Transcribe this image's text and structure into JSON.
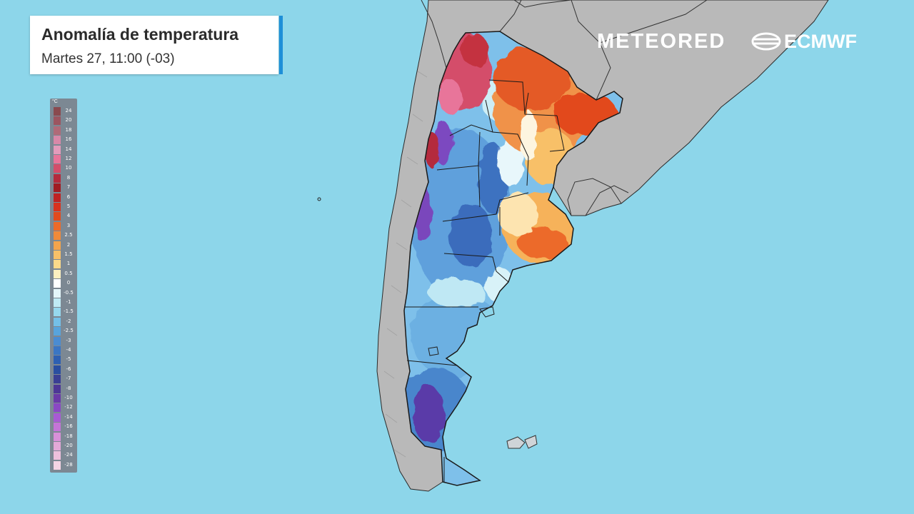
{
  "title": "Anomalía de temperatura",
  "subtitle": "Martes 27, 11:00 (-03)",
  "brand_meteored": "METEORED",
  "brand_ecmwf": "ECMWF",
  "legend": {
    "unit": "°C",
    "entries": [
      {
        "label": "24",
        "color": "#8a4a4f"
      },
      {
        "label": "20",
        "color": "#9c5560"
      },
      {
        "label": "18",
        "color": "#b06a78"
      },
      {
        "label": "16",
        "color": "#d888a8"
      },
      {
        "label": "14",
        "color": "#e39bbb"
      },
      {
        "label": "12",
        "color": "#e8749a"
      },
      {
        "label": "10",
        "color": "#d44d6a"
      },
      {
        "label": "8",
        "color": "#b42a3c"
      },
      {
        "label": "7",
        "color": "#a01c22"
      },
      {
        "label": "6",
        "color": "#bf2222"
      },
      {
        "label": "5",
        "color": "#d8321e"
      },
      {
        "label": "4",
        "color": "#e24a1e"
      },
      {
        "label": "3",
        "color": "#ec6a2a"
      },
      {
        "label": "2.5",
        "color": "#f08a3a"
      },
      {
        "label": "2",
        "color": "#f4a44c"
      },
      {
        "label": "1.5",
        "color": "#f8c068"
      },
      {
        "label": "1",
        "color": "#fbd98a"
      },
      {
        "label": "0.5",
        "color": "#fdf0c0"
      },
      {
        "label": "0",
        "color": "#ffffff"
      },
      {
        "label": "-0.5",
        "color": "#e4f6fa"
      },
      {
        "label": "-1",
        "color": "#bfeaf4"
      },
      {
        "label": "-1.5",
        "color": "#96d8ee"
      },
      {
        "label": "-2",
        "color": "#74c0e8"
      },
      {
        "label": "-2.5",
        "color": "#58a4dc"
      },
      {
        "label": "-3",
        "color": "#4a8cd2"
      },
      {
        "label": "-4",
        "color": "#3a76c4"
      },
      {
        "label": "-5",
        "color": "#2e60b2"
      },
      {
        "label": "-6",
        "color": "#2a4ea0"
      },
      {
        "label": "-7",
        "color": "#3a3f94"
      },
      {
        "label": "-8",
        "color": "#4d3796"
      },
      {
        "label": "-10",
        "color": "#6a3aa8"
      },
      {
        "label": "-12",
        "color": "#8a48c4"
      },
      {
        "label": "-14",
        "color": "#a85ad4"
      },
      {
        "label": "-16",
        "color": "#c474d8"
      },
      {
        "label": "-18",
        "color": "#d890d8"
      },
      {
        "label": "-20",
        "color": "#e4a8d8"
      },
      {
        "label": "-24",
        "color": "#eec0dc"
      },
      {
        "label": "-28",
        "color": "#f4d4e4"
      }
    ]
  },
  "colors": {
    "ocean": "#8dd6ea",
    "land_outside": "#b9b9b9",
    "warm": "#e24a1e",
    "cold": "#3a76c4",
    "accent": "#1e8fd8"
  }
}
